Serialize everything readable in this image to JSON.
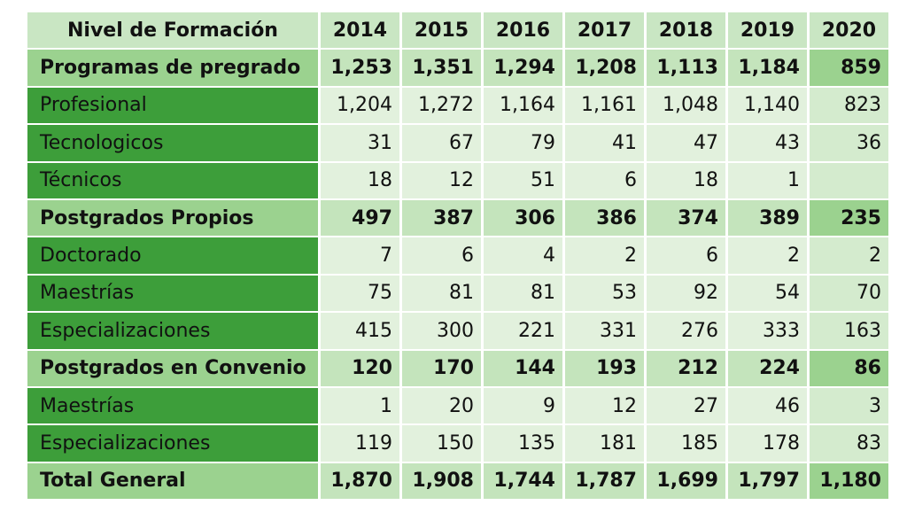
{
  "table": {
    "header": {
      "label": "Nivel de Formación",
      "years": [
        "2014",
        "2015",
        "2016",
        "2017",
        "2018",
        "2019",
        "2020"
      ]
    },
    "rows": [
      {
        "type": "sum",
        "label": "Programas de pregrado",
        "values": [
          "1,253",
          "1,351",
          "1,294",
          "1,208",
          "1,113",
          "1,184",
          "859"
        ]
      },
      {
        "type": "sub",
        "label": "Profesional",
        "values": [
          "1,204",
          "1,272",
          "1,164",
          "1,161",
          "1,048",
          "1,140",
          "823"
        ]
      },
      {
        "type": "sub",
        "label": "Tecnologicos",
        "values": [
          "31",
          "67",
          "79",
          "41",
          "47",
          "43",
          "36"
        ]
      },
      {
        "type": "sub",
        "label": "Técnicos",
        "values": [
          "18",
          "12",
          "51",
          "6",
          "18",
          "1",
          ""
        ]
      },
      {
        "type": "sum",
        "label": "Postgrados Propios",
        "values": [
          "497",
          "387",
          "306",
          "386",
          "374",
          "389",
          "235"
        ]
      },
      {
        "type": "sub",
        "label": "Doctorado",
        "values": [
          "7",
          "6",
          "4",
          "2",
          "6",
          "2",
          "2"
        ]
      },
      {
        "type": "sub",
        "label": "Maestrías",
        "values": [
          "75",
          "81",
          "81",
          "53",
          "92",
          "54",
          "70"
        ]
      },
      {
        "type": "sub",
        "label": "Especializaciones",
        "values": [
          "415",
          "300",
          "221",
          "331",
          "276",
          "333",
          "163"
        ]
      },
      {
        "type": "sum",
        "label": "Postgrados en Convenio",
        "values": [
          "120",
          "170",
          "144",
          "193",
          "212",
          "224",
          "86"
        ]
      },
      {
        "type": "sub",
        "label": "Maestrías",
        "values": [
          "1",
          "20",
          "9",
          "12",
          "27",
          "46",
          "3"
        ]
      },
      {
        "type": "sub",
        "label": "Especializaciones",
        "values": [
          "119",
          "150",
          "135",
          "181",
          "185",
          "178",
          "83"
        ]
      },
      {
        "type": "sum",
        "label": "Total General",
        "values": [
          "1,870",
          "1,908",
          "1,744",
          "1,787",
          "1,699",
          "1,797",
          "1,180"
        ]
      }
    ]
  },
  "colors": {
    "header_bg": "#c9e6c3",
    "sub_label_bg": "#3d9e3a",
    "sub_value_bg": "#e2f1dd",
    "sum_label_bg": "#9bd28f",
    "sum_value_bg": "#c4e4bc"
  }
}
